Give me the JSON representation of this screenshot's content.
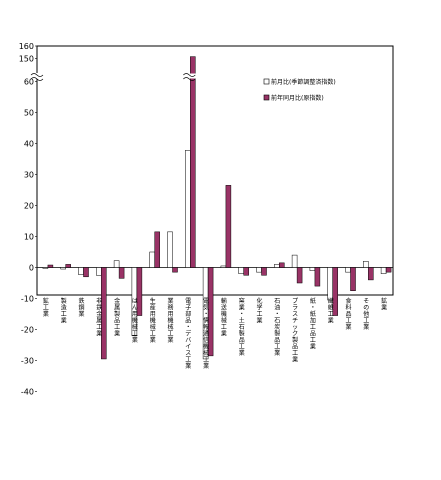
{
  "chart_data": {
    "type": "bar",
    "broken_axis": true,
    "axis_break_between": [
      60,
      150
    ],
    "yticks": [
      "160",
      "150",
      "60",
      "50",
      "40",
      "30",
      "20",
      "10",
      "0",
      "-10",
      "-20",
      "-30",
      "-40"
    ],
    "categories": [
      "鉱工業",
      "製造工業",
      "鉄鋼業",
      "非鉄金属工業",
      "金属製品工業",
      "はん用機械工業",
      "生産用機械工業",
      "業務用機械工業",
      "電子部品・デバイス工業",
      "電気・情報通信機械工業",
      "輸送機械工業",
      "窯業・土石製品工業",
      "化学工業",
      "石油・石炭製品工業",
      "プラスチック製品工業",
      "紙・紙加工品工業",
      "繊維工業",
      "食料品工業",
      "その他工業",
      "鉱業"
    ],
    "series": [
      {
        "name": "前月比(季節調整済指数)",
        "color": "#ffffff",
        "values": [
          -0.3,
          -0.5,
          -2.3,
          -2.5,
          2.2,
          -22.0,
          5.0,
          11.5,
          37.8,
          -29.5,
          0.5,
          -2.0,
          -1.5,
          1.0,
          4.0,
          -1.0,
          -10.5,
          -1.5,
          2.0,
          -2.0
        ]
      },
      {
        "name": "前年同月比(原指数)",
        "color": "#993366",
        "values": [
          0.8,
          1.0,
          -3.0,
          -29.5,
          -3.5,
          -15.5,
          11.5,
          -1.5,
          151.5,
          -28.5,
          26.5,
          -2.5,
          -2.5,
          1.5,
          -5.0,
          -6.0,
          -15.5,
          -7.5,
          -4.0,
          -1.5
        ]
      }
    ]
  }
}
